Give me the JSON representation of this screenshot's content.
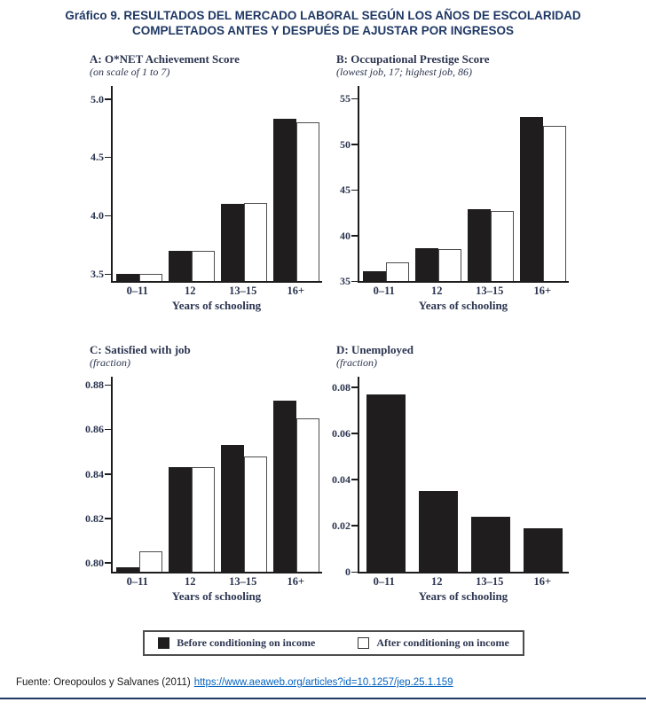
{
  "page": {
    "title_line1": "Gráfico 9. RESULTADOS DEL MERCADO LABORAL SEGÚN LOS AÑOS DE ESCOLARIDAD",
    "title_line2": "COMPLETADOS ANTES Y DESPUÉS DE AJUSTAR POR INGRESOS"
  },
  "colors": {
    "title_navy": "#1f3864",
    "figure_ink": "#2c3550",
    "bar_black": "#201d1e",
    "bar_outline": "#4d4d4d",
    "legend_border": "#4d4d4d",
    "link_blue": "#0563c1",
    "rule_navy": "#1f3864"
  },
  "legend": {
    "position": "bottom",
    "items": [
      {
        "label": "Before conditioning on income",
        "type": "filled",
        "fill": "#201d1e"
      },
      {
        "label": "After conditioning on income",
        "type": "outlined",
        "fill": "#ffffff"
      }
    ]
  },
  "footer": {
    "source_prefix": "Fuente: Oreopoulos y Salvanes (2011)",
    "source_link": "https://www.aeaweb.org/articles?id=10.1257/jep.25.1.159"
  },
  "chart_data": [
    {
      "type": "bar",
      "panel": "A",
      "title": "A: O*NET Achievement Score",
      "subtitle": "(on scale of 1 to 7)",
      "xlabel": "Years of schooling",
      "categories": [
        "0–11",
        "12",
        "13–15",
        "16+"
      ],
      "series": [
        {
          "name": "Before conditioning on income",
          "values": [
            3.5,
            3.7,
            4.1,
            4.83
          ]
        },
        {
          "name": "After conditioning on income",
          "values": [
            3.5,
            3.7,
            4.11,
            4.8
          ]
        }
      ],
      "ylim": [
        3.44,
        5.05
      ],
      "yticks": [
        3.5,
        4.0,
        4.5,
        5.0
      ],
      "ytick_labels": [
        "3.5",
        "4.0",
        "4.5",
        "5.0"
      ],
      "grid": false
    },
    {
      "type": "bar",
      "panel": "B",
      "title": "B: Occupational Prestige Score",
      "subtitle": "(lowest job, 17; highest job, 86)",
      "xlabel": "Years of schooling",
      "categories": [
        "0–11",
        "12",
        "13–15",
        "16+"
      ],
      "series": [
        {
          "name": "Before conditioning on income",
          "values": [
            36.1,
            38.6,
            42.9,
            53
          ]
        },
        {
          "name": "After conditioning on income",
          "values": [
            37,
            38.5,
            42.7,
            52
          ]
        }
      ],
      "ylim": [
        35,
        55.6
      ],
      "yticks": [
        35,
        40,
        45,
        50,
        55
      ],
      "ytick_labels": [
        "35",
        "40",
        "45",
        "50",
        "55"
      ],
      "grid": false
    },
    {
      "type": "bar",
      "panel": "C",
      "title": "C: Satisfied with job",
      "subtitle": "(fraction)",
      "xlabel": "Years of schooling",
      "categories": [
        "0–11",
        "12",
        "13–15",
        "16+"
      ],
      "series": [
        {
          "name": "Before conditioning on income",
          "values": [
            0.798,
            0.843,
            0.853,
            0.873
          ]
        },
        {
          "name": "After conditioning on income",
          "values": [
            0.805,
            0.843,
            0.848,
            0.865
          ]
        }
      ],
      "ylim": [
        0.796,
        0.8805
      ],
      "yticks": [
        0.8,
        0.82,
        0.84,
        0.86,
        0.88
      ],
      "ytick_labels": [
        "0.80",
        "0.82",
        "0.84",
        "0.86",
        "0.88"
      ],
      "grid": false
    },
    {
      "type": "bar",
      "panel": "D",
      "title": "D: Unemployed",
      "subtitle": "(fraction)",
      "xlabel": "Years of schooling",
      "categories": [
        "0–11",
        "12",
        "13–15",
        "16+"
      ],
      "series": [
        {
          "name": "Before conditioning on income",
          "values": [
            0.077,
            0.035,
            0.024,
            0.019
          ]
        }
      ],
      "ylim": [
        0,
        0.0815
      ],
      "yticks": [
        0,
        0.02,
        0.04,
        0.06,
        0.08
      ],
      "ytick_labels": [
        "0",
        "0.02",
        "0.04",
        "0.06",
        "0.08"
      ],
      "grid": false
    }
  ]
}
